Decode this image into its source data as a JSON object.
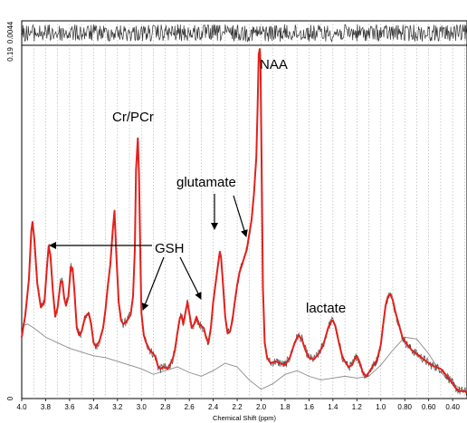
{
  "chart_data": {
    "type": "line",
    "x_axis": {
      "label": "Chemical Shift (ppm)",
      "reversed": true,
      "range": [
        4.0,
        0.28
      ],
      "ticks": [
        "4.0",
        "3.8",
        "3.6",
        "3.4",
        "3.2",
        "3.0",
        "2.8",
        "2.6",
        "2.4",
        "2.2",
        "2.0",
        "1.8",
        "1.6",
        "1.4",
        "1.2",
        "1.0",
        "0.80",
        "0.60",
        "0.40"
      ],
      "grid": "dotted vertical every 0.1 ppm"
    },
    "residual_panel": {
      "ytick": "0.0044"
    },
    "main_panel": {
      "yticks": [
        "0.19",
        "0"
      ]
    },
    "annotations": [
      {
        "id": "naa",
        "text": "NAA"
      },
      {
        "id": "crpcr",
        "text": "Cr/PCr"
      },
      {
        "id": "glutamate",
        "text": "glutamate"
      },
      {
        "id": "gsh",
        "text": "GSH"
      },
      {
        "id": "lactate",
        "text": "lactate"
      }
    ],
    "series": [
      {
        "id": "fit",
        "color": "#e3201b",
        "points": [
          [
            4.0,
            0.033
          ],
          [
            3.97,
            0.045
          ],
          [
            3.94,
            0.064
          ],
          [
            3.92,
            0.09
          ],
          [
            3.91,
            0.095
          ],
          [
            3.895,
            0.086
          ],
          [
            3.87,
            0.062
          ],
          [
            3.84,
            0.049
          ],
          [
            3.81,
            0.052
          ],
          [
            3.79,
            0.07
          ],
          [
            3.775,
            0.082
          ],
          [
            3.76,
            0.077
          ],
          [
            3.74,
            0.058
          ],
          [
            3.72,
            0.044
          ],
          [
            3.7,
            0.049
          ],
          [
            3.675,
            0.063
          ],
          [
            3.66,
            0.063
          ],
          [
            3.645,
            0.054
          ],
          [
            3.63,
            0.05
          ],
          [
            3.61,
            0.055
          ],
          [
            3.59,
            0.071
          ],
          [
            3.575,
            0.07
          ],
          [
            3.56,
            0.058
          ],
          [
            3.54,
            0.038
          ],
          [
            3.52,
            0.034
          ],
          [
            3.5,
            0.036
          ],
          [
            3.47,
            0.044
          ],
          [
            3.44,
            0.046
          ],
          [
            3.42,
            0.04
          ],
          [
            3.4,
            0.03
          ],
          [
            3.38,
            0.028
          ],
          [
            3.35,
            0.031
          ],
          [
            3.32,
            0.038
          ],
          [
            3.3,
            0.048
          ],
          [
            3.28,
            0.061
          ],
          [
            3.26,
            0.072
          ],
          [
            3.24,
            0.09
          ],
          [
            3.225,
            0.101
          ],
          [
            3.21,
            0.078
          ],
          [
            3.19,
            0.052
          ],
          [
            3.17,
            0.042
          ],
          [
            3.15,
            0.04
          ],
          [
            3.12,
            0.042
          ],
          [
            3.09,
            0.045
          ],
          [
            3.07,
            0.055
          ],
          [
            3.055,
            0.08
          ],
          [
            3.045,
            0.123
          ],
          [
            3.03,
            0.14
          ],
          [
            3.02,
            0.12
          ],
          [
            3.01,
            0.08
          ],
          [
            3.0,
            0.046
          ],
          [
            2.98,
            0.034
          ],
          [
            2.96,
            0.03
          ],
          [
            2.93,
            0.026
          ],
          [
            2.9,
            0.024
          ],
          [
            2.88,
            0.022
          ],
          [
            2.86,
            0.017
          ],
          [
            2.84,
            0.016
          ],
          [
            2.82,
            0.017
          ],
          [
            2.78,
            0.016
          ],
          [
            2.74,
            0.021
          ],
          [
            2.72,
            0.026
          ],
          [
            2.7,
            0.035
          ],
          [
            2.68,
            0.043
          ],
          [
            2.665,
            0.045
          ],
          [
            2.65,
            0.04
          ],
          [
            2.63,
            0.047
          ],
          [
            2.615,
            0.052
          ],
          [
            2.6,
            0.046
          ],
          [
            2.58,
            0.038
          ],
          [
            2.56,
            0.04
          ],
          [
            2.54,
            0.044
          ],
          [
            2.52,
            0.04
          ],
          [
            2.5,
            0.039
          ],
          [
            2.48,
            0.038
          ],
          [
            2.46,
            0.033
          ],
          [
            2.44,
            0.03
          ],
          [
            2.42,
            0.038
          ],
          [
            2.4,
            0.052
          ],
          [
            2.38,
            0.062
          ],
          [
            2.36,
            0.072
          ],
          [
            2.345,
            0.079
          ],
          [
            2.335,
            0.076
          ],
          [
            2.32,
            0.063
          ],
          [
            2.3,
            0.044
          ],
          [
            2.28,
            0.035
          ],
          [
            2.26,
            0.036
          ],
          [
            2.24,
            0.042
          ],
          [
            2.22,
            0.052
          ],
          [
            2.2,
            0.061
          ],
          [
            2.18,
            0.068
          ],
          [
            2.16,
            0.072
          ],
          [
            2.14,
            0.076
          ],
          [
            2.12,
            0.08
          ],
          [
            2.1,
            0.088
          ],
          [
            2.08,
            0.096
          ],
          [
            2.06,
            0.11
          ],
          [
            2.04,
            0.13
          ],
          [
            2.03,
            0.155
          ],
          [
            2.02,
            0.185
          ],
          [
            2.012,
            0.188
          ],
          [
            2.005,
            0.18
          ],
          [
            1.995,
            0.12
          ],
          [
            1.985,
            0.06
          ],
          [
            1.97,
            0.03
          ],
          [
            1.95,
            0.022
          ],
          [
            1.92,
            0.019
          ],
          [
            1.88,
            0.02
          ],
          [
            1.84,
            0.019
          ],
          [
            1.8,
            0.018
          ],
          [
            1.76,
            0.022
          ],
          [
            1.72,
            0.03
          ],
          [
            1.69,
            0.034
          ],
          [
            1.66,
            0.032
          ],
          [
            1.63,
            0.026
          ],
          [
            1.6,
            0.022
          ],
          [
            1.56,
            0.021
          ],
          [
            1.52,
            0.024
          ],
          [
            1.48,
            0.029
          ],
          [
            1.44,
            0.038
          ],
          [
            1.42,
            0.041
          ],
          [
            1.4,
            0.042
          ],
          [
            1.38,
            0.039
          ],
          [
            1.35,
            0.03
          ],
          [
            1.32,
            0.022
          ],
          [
            1.29,
            0.019
          ],
          [
            1.27,
            0.017
          ],
          [
            1.24,
            0.018
          ],
          [
            1.22,
            0.021
          ],
          [
            1.2,
            0.023
          ],
          [
            1.18,
            0.02
          ],
          [
            1.15,
            0.014
          ],
          [
            1.12,
            0.012
          ],
          [
            1.09,
            0.015
          ],
          [
            1.06,
            0.018
          ],
          [
            1.03,
            0.021
          ],
          [
            1.0,
            0.029
          ],
          [
            0.98,
            0.04
          ],
          [
            0.96,
            0.05
          ],
          [
            0.94,
            0.055
          ],
          [
            0.92,
            0.056
          ],
          [
            0.9,
            0.053
          ],
          [
            0.88,
            0.047
          ],
          [
            0.85,
            0.04
          ],
          [
            0.82,
            0.033
          ],
          [
            0.78,
            0.029
          ],
          [
            0.74,
            0.026
          ],
          [
            0.7,
            0.024
          ],
          [
            0.66,
            0.022
          ],
          [
            0.62,
            0.02
          ],
          [
            0.58,
            0.018
          ],
          [
            0.54,
            0.017
          ],
          [
            0.5,
            0.016
          ],
          [
            0.46,
            0.013
          ],
          [
            0.42,
            0.01
          ],
          [
            0.38,
            0.006
          ],
          [
            0.34,
            0.004
          ],
          [
            0.3,
            0.004
          ],
          [
            0.28,
            0.003
          ]
        ]
      },
      {
        "id": "baseline",
        "color": "#8a8a8a",
        "points": [
          [
            4.0,
            0.039
          ],
          [
            3.95,
            0.04
          ],
          [
            3.9,
            0.038
          ],
          [
            3.8,
            0.033
          ],
          [
            3.7,
            0.03
          ],
          [
            3.6,
            0.027
          ],
          [
            3.5,
            0.025
          ],
          [
            3.4,
            0.023
          ],
          [
            3.3,
            0.022
          ],
          [
            3.2,
            0.02
          ],
          [
            3.1,
            0.018
          ],
          [
            3.0,
            0.016
          ],
          [
            2.9,
            0.013
          ],
          [
            2.8,
            0.015
          ],
          [
            2.7,
            0.017
          ],
          [
            2.6,
            0.014
          ],
          [
            2.5,
            0.012
          ],
          [
            2.4,
            0.015
          ],
          [
            2.3,
            0.019
          ],
          [
            2.2,
            0.017
          ],
          [
            2.1,
            0.01
          ],
          [
            2.0,
            0.005
          ],
          [
            1.9,
            0.008
          ],
          [
            1.8,
            0.013
          ],
          [
            1.7,
            0.015
          ],
          [
            1.6,
            0.012
          ],
          [
            1.5,
            0.01
          ],
          [
            1.4,
            0.011
          ],
          [
            1.3,
            0.012
          ],
          [
            1.2,
            0.011
          ],
          [
            1.1,
            0.012
          ],
          [
            1.0,
            0.018
          ],
          [
            0.9,
            0.026
          ],
          [
            0.8,
            0.033
          ],
          [
            0.7,
            0.032
          ],
          [
            0.6,
            0.024
          ],
          [
            0.5,
            0.014
          ],
          [
            0.4,
            0.008
          ],
          [
            0.3,
            0.004
          ],
          [
            0.28,
            0.003
          ]
        ]
      }
    ],
    "raw_data": {
      "color": "#444444",
      "noise_amplitude": 0.0025
    },
    "residual": {
      "color": "#333333",
      "amplitude_fraction": 0.35
    }
  }
}
